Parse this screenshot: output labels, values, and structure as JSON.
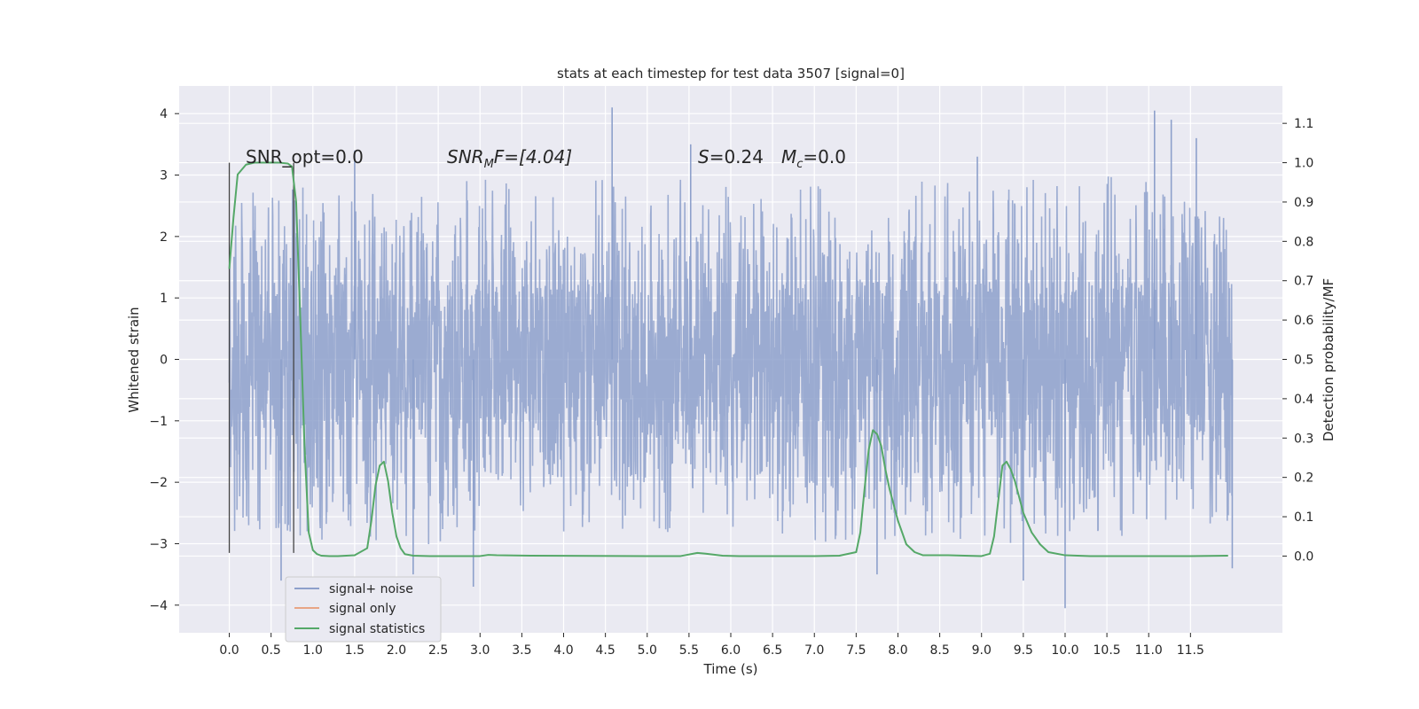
{
  "chart_data": {
    "type": "line",
    "title": "stats at each timestep for test data 3507 [signal=0]",
    "xlabel": "Time (s)",
    "ylabel": "Whitened strain",
    "y2label": "Detection probability/MF",
    "xlim": [
      -0.6,
      12.6
    ],
    "ylim": [
      -4.45,
      4.45
    ],
    "y2lim": [
      -0.195,
      1.195
    ],
    "x_ticks": [
      "0.0",
      "0.5",
      "1.0",
      "1.5",
      "2.0",
      "2.5",
      "3.0",
      "3.5",
      "4.0",
      "4.5",
      "5.0",
      "5.5",
      "6.0",
      "6.5",
      "7.0",
      "7.5",
      "8.0",
      "8.5",
      "9.0",
      "9.5",
      "10.0",
      "10.5",
      "11.0",
      "11.5"
    ],
    "y_ticks": [
      4,
      3,
      2,
      1,
      0,
      -1,
      -2,
      -3,
      -4
    ],
    "y_tick_labels": [
      "4",
      "3",
      "2",
      "1",
      "0",
      "−1",
      "−2",
      "−3",
      "−4"
    ],
    "y2_ticks": [
      1.1,
      1.0,
      0.9,
      0.8,
      0.7,
      0.6,
      0.5,
      0.4,
      0.3,
      0.2,
      0.1,
      0.0
    ],
    "y2_tick_labels": [
      "1.1",
      "1.0",
      "0.9",
      "0.8",
      "0.7",
      "0.6",
      "0.5",
      "0.4",
      "0.3",
      "0.2",
      "0.1",
      "0.0"
    ],
    "grid": true,
    "legend_placement": "lower-left",
    "annotations": {
      "snr_opt": "SNR_opt=0.0",
      "snr_mf_main": "SNR",
      "snr_mf_sub": "M",
      "snr_mf_rest": "F=[4.04]",
      "s_main": "S",
      "s_rest": "=0.24",
      "mc_main": "M",
      "mc_sub": "c",
      "mc_rest": "=0.0"
    },
    "markers": {
      "x": [
        0.0,
        0.77
      ],
      "ymin": -3.15,
      "ymax": 3.2,
      "color": "#444444"
    },
    "series": [
      {
        "name": "signal+ noise",
        "color": "#8da0cb",
        "axis": "left",
        "x_range": [
          0.0,
          12.0
        ],
        "envelope": {
          "x": [
            0.0,
            0.5,
            1.0,
            1.5,
            2.0,
            2.5,
            3.0,
            3.5,
            4.0,
            4.5,
            5.0,
            5.5,
            6.0,
            6.5,
            7.0,
            7.5,
            8.0,
            8.5,
            9.0,
            9.5,
            10.0,
            10.5,
            11.0,
            11.5,
            12.0
          ],
          "upper": [
            2.8,
            2.7,
            3.0,
            2.9,
            2.6,
            2.8,
            3.0,
            2.8,
            2.7,
            3.0,
            2.8,
            3.0,
            2.9,
            2.8,
            3.1,
            2.8,
            2.9,
            2.9,
            2.8,
            3.0,
            3.0,
            3.0,
            3.2,
            2.9,
            2.2
          ],
          "lower": [
            -2.9,
            -2.8,
            -3.0,
            -2.9,
            -3.1,
            -3.0,
            -2.9,
            -2.9,
            -2.9,
            -3.0,
            -2.8,
            -2.9,
            -2.8,
            -2.9,
            -3.0,
            -3.0,
            -2.9,
            -2.9,
            -3.0,
            -3.1,
            -2.9,
            -3.0,
            -2.9,
            -3.0,
            -2.6
          ]
        },
        "peaks": [
          {
            "x": 0.62,
            "y": -3.6
          },
          {
            "x": 1.5,
            "y": 3.4
          },
          {
            "x": 2.2,
            "y": -3.5
          },
          {
            "x": 2.92,
            "y": -3.7
          },
          {
            "x": 4.58,
            "y": 4.1
          },
          {
            "x": 5.52,
            "y": 3.5
          },
          {
            "x": 7.75,
            "y": -3.5
          },
          {
            "x": 8.95,
            "y": 3.3
          },
          {
            "x": 9.5,
            "y": -3.6
          },
          {
            "x": 10.0,
            "y": -4.05
          },
          {
            "x": 11.07,
            "y": 4.05
          },
          {
            "x": 11.27,
            "y": 3.9
          },
          {
            "x": 11.57,
            "y": 3.6
          },
          {
            "x": 12.0,
            "y": -3.4
          }
        ]
      },
      {
        "name": "signal only",
        "color": "#e8a585",
        "axis": "left",
        "x": [],
        "y": []
      },
      {
        "name": "signal statistics",
        "color": "#55a868",
        "axis": "right",
        "x": [
          0.0,
          0.05,
          0.1,
          0.2,
          0.3,
          0.4,
          0.5,
          0.6,
          0.7,
          0.75,
          0.8,
          0.85,
          0.9,
          0.95,
          1.0,
          1.05,
          1.1,
          1.2,
          1.3,
          1.5,
          1.65,
          1.7,
          1.75,
          1.8,
          1.85,
          1.9,
          1.95,
          2.0,
          2.05,
          2.1,
          2.2,
          2.4,
          3.0,
          3.1,
          3.2,
          3.6,
          5.0,
          5.4,
          5.6,
          5.7,
          5.9,
          6.1,
          7.0,
          7.3,
          7.5,
          7.55,
          7.6,
          7.65,
          7.7,
          7.75,
          7.8,
          7.85,
          7.9,
          8.0,
          8.1,
          8.2,
          8.3,
          8.6,
          9.0,
          9.1,
          9.15,
          9.2,
          9.25,
          9.3,
          9.35,
          9.4,
          9.45,
          9.5,
          9.6,
          9.7,
          9.8,
          10.0,
          10.3,
          11.0,
          11.5,
          11.95
        ],
        "y": [
          0.73,
          0.86,
          0.97,
          0.995,
          1.0,
          1.0,
          1.0,
          1.0,
          0.998,
          0.99,
          0.9,
          0.6,
          0.28,
          0.06,
          0.015,
          0.005,
          0.001,
          0.0,
          0.0,
          0.002,
          0.02,
          0.09,
          0.18,
          0.23,
          0.24,
          0.19,
          0.11,
          0.05,
          0.02,
          0.005,
          0.001,
          0.0,
          0.0,
          0.003,
          0.002,
          0.001,
          0.0,
          0.0,
          0.008,
          0.006,
          0.001,
          0.0,
          0.0,
          0.001,
          0.01,
          0.06,
          0.17,
          0.27,
          0.32,
          0.31,
          0.28,
          0.22,
          0.17,
          0.09,
          0.03,
          0.01,
          0.002,
          0.002,
          0.0,
          0.006,
          0.05,
          0.14,
          0.23,
          0.24,
          0.22,
          0.19,
          0.15,
          0.11,
          0.06,
          0.03,
          0.01,
          0.002,
          0.0,
          0.0,
          0.0,
          0.001
        ]
      }
    ]
  }
}
